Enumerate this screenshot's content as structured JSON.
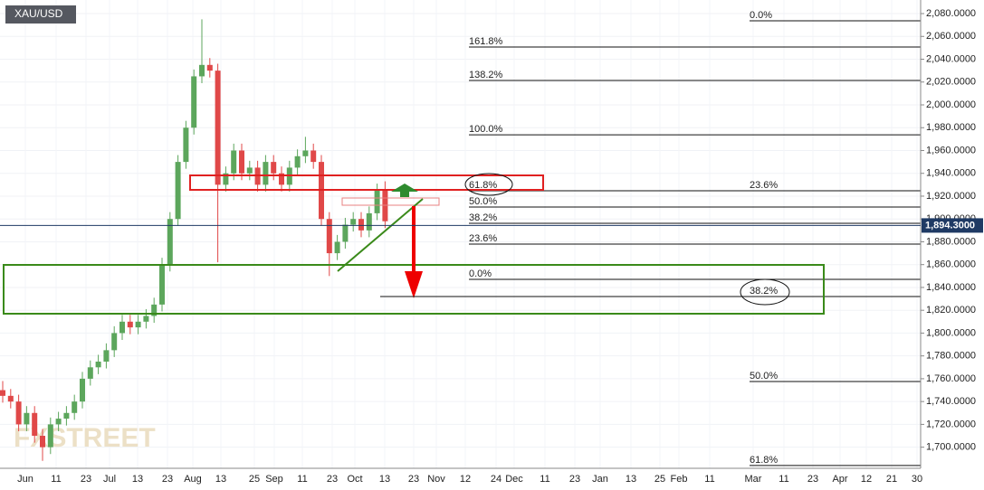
{
  "chart_data": {
    "type": "candlestick",
    "title": "XAU/USD",
    "watermark": "FXSTREET",
    "xtick_labels": [
      "Jun",
      "11",
      "23",
      "Jul",
      "13",
      "23",
      "Aug",
      "13",
      "25",
      "Sep",
      "11",
      "23",
      "Oct",
      "13",
      "23",
      "Nov",
      "12",
      "24",
      "Dec",
      "11",
      "23",
      "Jan",
      "13",
      "25",
      "Feb",
      "11",
      "Mar",
      "11",
      "23",
      "Apr",
      "12",
      "21",
      "30"
    ],
    "ylim": [
      1681.5,
      2091.9
    ],
    "yticks": [
      {
        "value": 1700,
        "label": "1,700.0000"
      },
      {
        "value": 1720,
        "label": "1,720.0000"
      },
      {
        "value": 1740,
        "label": "1,740.0000"
      },
      {
        "value": 1760,
        "label": "1,760.0000"
      },
      {
        "value": 1780,
        "label": "1,780.0000"
      },
      {
        "value": 1800,
        "label": "1,800.0000"
      },
      {
        "value": 1820,
        "label": "1,820.0000"
      },
      {
        "value": 1840,
        "label": "1,840.0000"
      },
      {
        "value": 1860,
        "label": "1,860.0000"
      },
      {
        "value": 1880,
        "label": "1,880.0000"
      },
      {
        "value": 1900,
        "label": "1,900.0000"
      },
      {
        "value": 1920,
        "label": "1,920.0000"
      },
      {
        "value": 1940,
        "label": "1,940.0000"
      },
      {
        "value": 1960,
        "label": "1,960.0000"
      },
      {
        "value": 1980,
        "label": "1,980.0000"
      },
      {
        "value": 2000,
        "label": "2,000.0000"
      },
      {
        "value": 2020,
        "label": "2,020.0000"
      },
      {
        "value": 2040,
        "label": "2,040.0000"
      },
      {
        "value": 2060,
        "label": "2,060.0000"
      },
      {
        "value": 2080,
        "label": "2,080.0000"
      }
    ],
    "grid": true,
    "up_color": "#5ca65c",
    "down_color": "#e04848",
    "open": [
      1750,
      1745,
      1740,
      1720,
      1730,
      1710,
      1700,
      1720,
      1725,
      1730,
      1740,
      1760,
      1770,
      1775,
      1785,
      1800,
      1810,
      1805,
      1810,
      1815,
      1825,
      1860,
      1900,
      1950,
      1980,
      2025,
      2035,
      2030,
      1930,
      1940,
      1960,
      1940,
      1945,
      1930,
      1950,
      1940,
      1930,
      1945,
      1955,
      1960,
      1950,
      1900,
      1870,
      1880,
      1895,
      1900,
      1890,
      1905,
      1925
    ],
    "high": [
      1758,
      1751,
      1746,
      1736,
      1736,
      1716,
      1726,
      1731,
      1736,
      1746,
      1766,
      1776,
      1781,
      1791,
      1806,
      1816,
      1816,
      1816,
      1821,
      1831,
      1866,
      1906,
      1956,
      1986,
      2031,
      2075,
      2041,
      2036,
      1946,
      1966,
      1966,
      1951,
      1951,
      1956,
      1956,
      1946,
      1951,
      1961,
      1972,
      1966,
      1956,
      1906,
      1886,
      1901,
      1906,
      1906,
      1911,
      1931,
      1933
    ],
    "low": [
      1739,
      1734,
      1714,
      1714,
      1704,
      1688,
      1694,
      1714,
      1719,
      1724,
      1734,
      1754,
      1764,
      1769,
      1779,
      1794,
      1799,
      1799,
      1804,
      1809,
      1819,
      1854,
      1894,
      1944,
      1974,
      2019,
      2024,
      1862,
      1924,
      1934,
      1934,
      1934,
      1924,
      1924,
      1934,
      1924,
      1924,
      1939,
      1949,
      1944,
      1894,
      1850,
      1864,
      1874,
      1889,
      1884,
      1884,
      1899,
      1892
    ],
    "close": [
      1745,
      1740,
      1720,
      1730,
      1710,
      1700,
      1720,
      1725,
      1730,
      1740,
      1760,
      1770,
      1775,
      1785,
      1800,
      1810,
      1805,
      1810,
      1815,
      1825,
      1860,
      1900,
      1950,
      1980,
      2025,
      2035,
      2030,
      1930,
      1940,
      1960,
      1940,
      1945,
      1930,
      1950,
      1940,
      1930,
      1945,
      1955,
      1960,
      1950,
      1900,
      1870,
      1880,
      1895,
      1900,
      1890,
      1905,
      1925,
      1898
    ],
    "current_price": {
      "value": 1894.3,
      "label": "1,894.3000"
    },
    "fib_left": [
      {
        "label": "161.8%",
        "price": 2050.7
      },
      {
        "label": "138.2%",
        "price": 2021.4
      },
      {
        "label": "100.0%",
        "price": 1973.8
      },
      {
        "label": "61.8%",
        "price": 1924.7
      },
      {
        "label": "50.0%",
        "price": 1910.5
      },
      {
        "label": "38.2%",
        "price": 1896.2
      },
      {
        "label": "23.6%",
        "price": 1878.0
      },
      {
        "label": "0.0%",
        "price": 1847.1
      }
    ],
    "fib_right": [
      {
        "label": "0.0%",
        "price": 2073.7
      },
      {
        "label": "23.6%",
        "price": 1924.7
      },
      {
        "label": "38.2%",
        "price": 1832.0
      },
      {
        "label": "50.0%",
        "price": 1757.6
      },
      {
        "label": "61.8%",
        "price": 1684
      }
    ]
  }
}
